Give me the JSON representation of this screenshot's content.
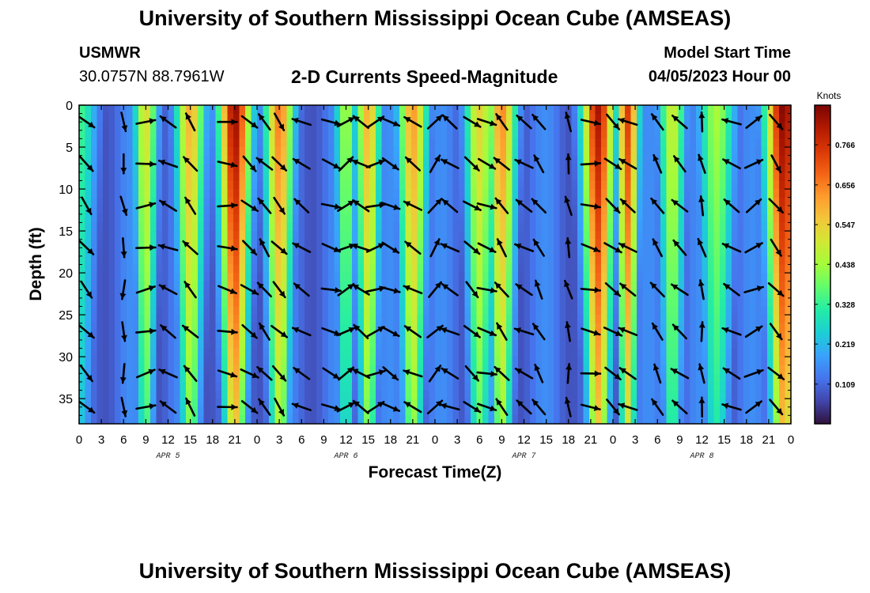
{
  "header": {
    "title": "University of Southern Mississippi Ocean Cube (AMSEAS)",
    "station_id": "USMWR",
    "station_coords": "30.0757N  88.7961W",
    "subtitle": "2-D Currents Speed-Magnitude",
    "model_start_label": "Model Start Time",
    "model_start_value": "04/05/2023 Hour 00"
  },
  "footer": {
    "title": "University of Southern Mississippi Ocean Cube (AMSEAS)"
  },
  "chart_data": {
    "type": "heatmap",
    "title": "2-D Currents Speed-Magnitude",
    "xlabel": "Forecast Time(Z)",
    "ylabel": "Depth (ft)",
    "x_range_hours": [
      0,
      96
    ],
    "ylim": [
      0,
      38
    ],
    "y_inverted": true,
    "x_ticks": [
      0,
      3,
      6,
      9,
      12,
      15,
      18,
      21,
      24,
      27,
      30,
      33,
      36,
      39,
      42,
      45,
      48,
      51,
      54,
      57,
      60,
      63,
      66,
      69,
      72,
      75,
      78,
      81,
      84,
      87,
      90,
      93,
      96
    ],
    "x_tick_labels": [
      "0",
      "3",
      "6",
      "9",
      "12",
      "15",
      "18",
      "21",
      "0",
      "3",
      "6",
      "9",
      "12",
      "15",
      "18",
      "21",
      "0",
      "3",
      "6",
      "9",
      "12",
      "15",
      "18",
      "21",
      "0",
      "3",
      "6",
      "9",
      "12",
      "15",
      "18",
      "21",
      "0"
    ],
    "day_labels": [
      {
        "hour": 12,
        "label": "APR 5"
      },
      {
        "hour": 36,
        "label": "APR 6"
      },
      {
        "hour": 60,
        "label": "APR 7"
      },
      {
        "hour": 84,
        "label": "APR 8"
      }
    ],
    "y_ticks": [
      0,
      5,
      10,
      15,
      20,
      25,
      30,
      35
    ],
    "y_tick_labels": [
      "0",
      "5",
      "10",
      "15",
      "20",
      "25",
      "30",
      "35"
    ],
    "colorbar": {
      "unit": "Knots",
      "min": 0.0,
      "max": 0.875,
      "ticks": [
        0.109,
        0.219,
        0.328,
        0.438,
        0.547,
        0.656,
        0.766
      ],
      "tick_labels": [
        "0.109",
        "0.219",
        "0.328",
        "0.438",
        "0.547",
        "0.656",
        "0.766"
      ],
      "colormap": [
        "#30123b",
        "#4145ab",
        "#4675ed",
        "#39a2fc",
        "#1bcfd4",
        "#24eca6",
        "#61fc6c",
        "#a4fc3b",
        "#d1e834",
        "#f3c63a",
        "#fe9b2d",
        "#f36315",
        "#d93806",
        "#b11901",
        "#7a0402"
      ]
    },
    "speed_bands": [
      {
        "center_hour": 0,
        "width_hours": 2.5,
        "peak_knots": 0.3
      },
      {
        "center_hour": 9,
        "width_hours": 1.6,
        "peak_knots": 0.48
      },
      {
        "center_hour": 15,
        "width_hours": 2.0,
        "peak_knots": 0.55
      },
      {
        "center_hour": 21,
        "width_hours": 2.2,
        "peak_knots": 0.8
      },
      {
        "center_hour": 27,
        "width_hours": 2.0,
        "peak_knots": 0.62
      },
      {
        "center_hour": 36,
        "width_hours": 1.5,
        "peak_knots": 0.4
      },
      {
        "center_hour": 39,
        "width_hours": 1.7,
        "peak_knots": 0.55
      },
      {
        "center_hour": 45,
        "width_hours": 2.0,
        "peak_knots": 0.58
      },
      {
        "center_hour": 54,
        "width_hours": 2.0,
        "peak_knots": 0.5
      },
      {
        "center_hour": 57,
        "width_hours": 2.0,
        "peak_knots": 0.6
      },
      {
        "center_hour": 70,
        "width_hours": 2.2,
        "peak_knots": 0.78
      },
      {
        "center_hour": 74,
        "width_hours": 1.5,
        "peak_knots": 0.7
      },
      {
        "center_hour": 80,
        "width_hours": 1.8,
        "peak_knots": 0.45
      },
      {
        "center_hour": 86,
        "width_hours": 2.5,
        "peak_knots": 0.4
      },
      {
        "center_hour": 95,
        "width_hours": 2.5,
        "peak_knots": 0.82
      }
    ],
    "background_knots": 0.16,
    "vector_columns": [
      {
        "hour": 1,
        "dir_deg": 140
      },
      {
        "hour": 6,
        "dir_deg": 175
      },
      {
        "hour": 9,
        "dir_deg": 80
      },
      {
        "hour": 12,
        "dir_deg": 300
      },
      {
        "hour": 15,
        "dir_deg": 320
      },
      {
        "hour": 20,
        "dir_deg": 100
      },
      {
        "hour": 23,
        "dir_deg": 130
      },
      {
        "hour": 25,
        "dir_deg": 320
      },
      {
        "hour": 27,
        "dir_deg": 140
      },
      {
        "hour": 30,
        "dir_deg": 300
      },
      {
        "hour": 34,
        "dir_deg": 110
      },
      {
        "hour": 36,
        "dir_deg": 60
      },
      {
        "hour": 38,
        "dir_deg": 300
      },
      {
        "hour": 40,
        "dir_deg": 70
      },
      {
        "hour": 42,
        "dir_deg": 120
      },
      {
        "hour": 45,
        "dir_deg": 300
      },
      {
        "hour": 48,
        "dir_deg": 40
      },
      {
        "hour": 50,
        "dir_deg": 300
      },
      {
        "hour": 53,
        "dir_deg": 130
      },
      {
        "hour": 55,
        "dir_deg": 110
      },
      {
        "hour": 57,
        "dir_deg": 320
      },
      {
        "hour": 60,
        "dir_deg": 300
      },
      {
        "hour": 62,
        "dir_deg": 330
      },
      {
        "hour": 66,
        "dir_deg": 350
      },
      {
        "hour": 69,
        "dir_deg": 100
      },
      {
        "hour": 72,
        "dir_deg": 130
      },
      {
        "hour": 74,
        "dir_deg": 300
      },
      {
        "hour": 78,
        "dir_deg": 330
      },
      {
        "hour": 81,
        "dir_deg": 310
      },
      {
        "hour": 84,
        "dir_deg": 350
      },
      {
        "hour": 88,
        "dir_deg": 300
      },
      {
        "hour": 91,
        "dir_deg": 60
      },
      {
        "hour": 94,
        "dir_deg": 140
      }
    ],
    "vector_depths_ft": [
      2,
      7,
      12,
      17,
      22,
      27,
      32,
      36
    ]
  }
}
